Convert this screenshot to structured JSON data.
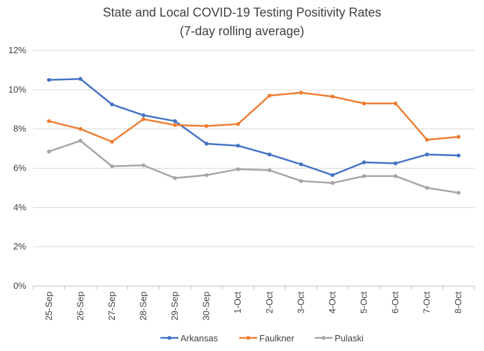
{
  "chart_data": {
    "type": "line",
    "title_lines": [
      "State and Local COVID-19 Testing Positivity Rates",
      "(7-day rolling average)"
    ],
    "categories": [
      "25-Sep",
      "26-Sep",
      "27-Sep",
      "28-Sep",
      "29-Sep",
      "30-Sep",
      "1-Oct",
      "2-Oct",
      "3-Oct",
      "4-Oct",
      "5-Oct",
      "6-Oct",
      "7-Oct",
      "8-Oct"
    ],
    "ylim": [
      0,
      12
    ],
    "yticks": [
      0,
      2,
      4,
      6,
      8,
      10,
      12
    ],
    "ytick_labels": [
      "0%",
      "2%",
      "4%",
      "6%",
      "8%",
      "10%",
      "12%"
    ],
    "grid": true,
    "legend_position": "bottom",
    "series": [
      {
        "name": "Arkansas",
        "color": "#4472C4",
        "values": [
          10.5,
          10.55,
          9.25,
          8.7,
          8.4,
          7.25,
          7.15,
          6.7,
          6.2,
          5.65,
          6.3,
          6.25,
          6.7,
          6.65
        ]
      },
      {
        "name": "Faulkner",
        "color": "#ED7D31",
        "values": [
          8.4,
          8.0,
          7.35,
          8.5,
          8.2,
          8.15,
          8.25,
          9.7,
          9.85,
          9.65,
          9.3,
          9.3,
          7.45,
          7.6
        ]
      },
      {
        "name": "Pulaski",
        "color": "#A5A5A5",
        "values": [
          6.85,
          7.4,
          6.1,
          6.15,
          5.5,
          5.65,
          5.95,
          5.9,
          5.35,
          5.25,
          5.6,
          5.6,
          5.0,
          4.75
        ]
      }
    ]
  }
}
